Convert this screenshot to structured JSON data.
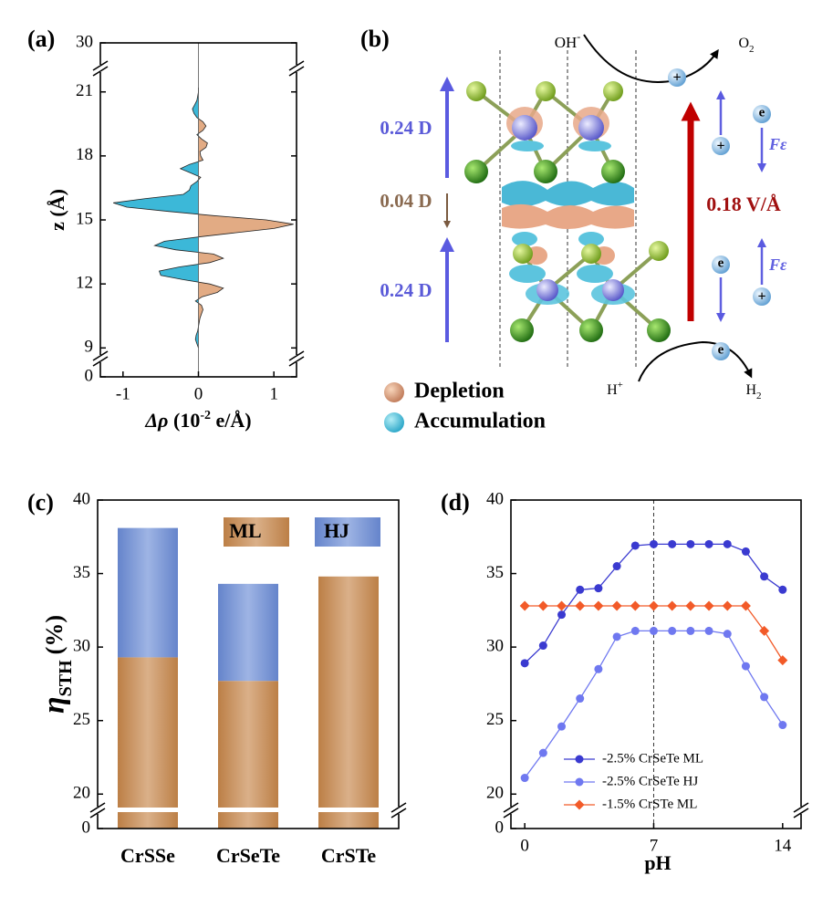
{
  "chart_data": [
    {
      "type": "area",
      "label": "(a)",
      "xlabel": [
        "Δρ",
        " (10",
        "-2",
        " e/Å)"
      ],
      "ylabel": "z (Å)",
      "z": [
        9.0,
        9.2,
        9.4,
        9.6,
        9.8,
        10.0,
        10.4,
        10.8,
        11.0,
        11.2,
        11.4,
        11.6,
        11.8,
        12.0,
        12.2,
        12.4,
        12.6,
        12.8,
        13.0,
        13.2,
        13.4,
        13.6,
        13.8,
        14.0,
        14.2,
        14.4,
        14.6,
        14.8,
        15.0,
        15.2,
        15.4,
        15.6,
        15.8,
        16.0,
        16.2,
        16.4,
        16.6,
        16.8,
        17.0,
        17.2,
        17.4,
        17.6,
        17.8,
        18.0,
        18.2,
        18.4,
        18.6,
        18.8,
        19.0,
        19.2,
        19.4,
        19.6,
        19.8,
        20.0,
        20.2,
        20.4,
        20.6,
        20.8,
        21.0,
        21.2
      ],
      "values": [
        0,
        -0.02,
        -0.04,
        -0.03,
        -0.01,
        0,
        0.02,
        0.06,
        0.04,
        -0.04,
        0.05,
        0.25,
        0.33,
        0.15,
        -0.2,
        -0.5,
        -0.52,
        -0.25,
        0.15,
        0.33,
        0.2,
        -0.3,
        -0.58,
        -0.45,
        0.0,
        0.5,
        1.0,
        1.26,
        0.9,
        0.2,
        -0.4,
        -0.95,
        -1.13,
        -0.7,
        -0.2,
        -0.12,
        -0.1,
        -0.02,
        0.03,
        -0.1,
        -0.24,
        -0.12,
        0.06,
        0.03,
        0.02,
        0.1,
        0.12,
        0.04,
        -0.02,
        0.06,
        0.1,
        0.06,
        -0.02,
        -0.06,
        -0.08,
        -0.05,
        -0.02,
        -0.01,
        0,
        0
      ],
      "positive_color": "#e2ab84",
      "negative_color": "#3cb8d8",
      "xlim": [
        -1.3,
        1.3
      ],
      "xticks": [
        -1,
        0,
        1
      ],
      "ylim": [
        0,
        30
      ],
      "yticks": [
        0,
        9,
        12,
        15,
        18,
        21,
        30
      ],
      "axis_break": {
        "lower": 8.5,
        "upper": 22.1
      }
    },
    {
      "type": "bar",
      "label": "(c)",
      "stacked": true,
      "ylabel": [
        "η",
        "STH",
        "(%)"
      ],
      "categories": [
        "CrSSe",
        "CrSeTe",
        "CrSTe"
      ],
      "series": [
        {
          "name": "ML",
          "color": "#c6864a",
          "values": [
            29.3,
            27.7,
            34.8
          ]
        },
        {
          "name": "HJ",
          "color": "#6a8bd6",
          "values": [
            8.8,
            6.6,
            null
          ]
        }
      ],
      "ylim": [
        0,
        40
      ],
      "yticks": [
        0,
        20,
        25,
        30,
        35,
        40
      ],
      "axis_break": {
        "lower": 18.9
      }
    },
    {
      "type": "line",
      "label": "(d)",
      "xlabel": "pH",
      "x": [
        0,
        1,
        2,
        3,
        4,
        5,
        6,
        7,
        8,
        9,
        10,
        11,
        12,
        13,
        14
      ],
      "series": [
        {
          "name": "-2.5% CrSeTe ML",
          "color": "#3a3ad0",
          "marker": "circle",
          "values": [
            28.9,
            30.1,
            32.2,
            33.9,
            34.0,
            35.5,
            36.9,
            37.0,
            37.0,
            37.0,
            37.0,
            37.0,
            36.5,
            34.8,
            33.9
          ]
        },
        {
          "name": "-2.5% CrSeTe HJ",
          "color": "#6f78f0",
          "marker": "circle",
          "values": [
            21.1,
            22.8,
            24.6,
            26.5,
            28.5,
            30.7,
            31.1,
            31.1,
            31.1,
            31.1,
            31.1,
            30.9,
            28.7,
            26.6,
            24.7
          ]
        },
        {
          "name": "-1.5% CrSTe ML",
          "color": "#f25a28",
          "marker": "diamond",
          "values": [
            32.8,
            32.8,
            32.8,
            32.8,
            32.8,
            32.8,
            32.8,
            32.8,
            32.8,
            32.8,
            32.8,
            32.8,
            32.8,
            31.1,
            29.1
          ]
        }
      ],
      "vline": 7,
      "xlim": [
        -0.75,
        15
      ],
      "xticks": [
        0,
        7,
        14
      ],
      "ylim": [
        0,
        40
      ],
      "yticks": [
        0,
        20,
        25,
        30,
        35,
        40
      ],
      "axis_break": {
        "lower": 18.9
      },
      "legend": "lower center"
    }
  ],
  "diagram": {
    "label": "(b)",
    "oh": [
      "OH",
      "-"
    ],
    "o2": [
      "O",
      "2"
    ],
    "h_plus": [
      "H",
      "+"
    ],
    "h2": [
      "H",
      "2"
    ],
    "dipoles": [
      "0.24 D",
      "0.04 D",
      "0.24 D"
    ],
    "field": "0.18 V/Å",
    "f_eps": [
      "F",
      "ε"
    ],
    "electron": "e",
    "hole": "+",
    "legend": [
      "Depletion",
      "Accumulation"
    ]
  }
}
